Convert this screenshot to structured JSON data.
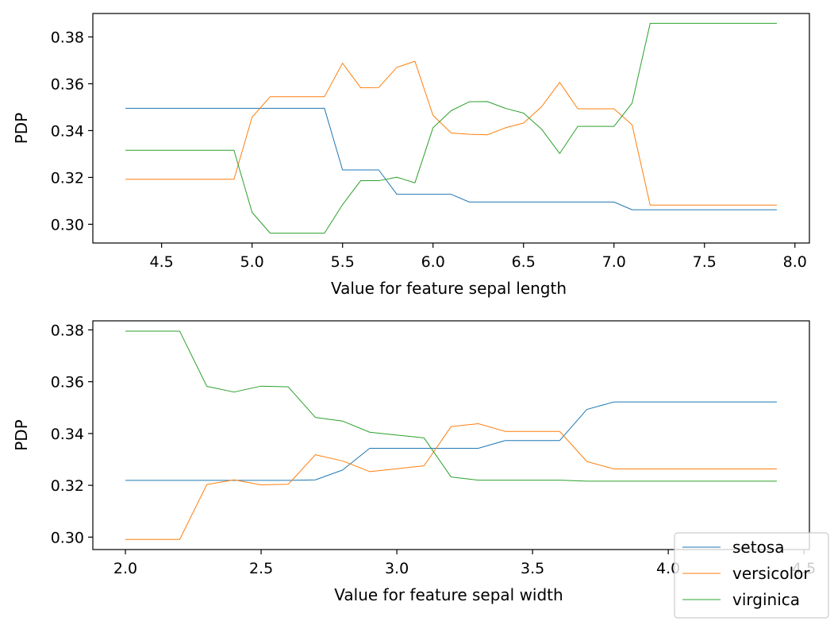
{
  "colors": {
    "setosa": "#1f77b4",
    "versicolor": "#ff7f0e",
    "virginica": "#2ca02c"
  },
  "legend": {
    "placement": "bottom-right",
    "entries": [
      "setosa",
      "versicolor",
      "virginica"
    ]
  },
  "chart_data": [
    {
      "type": "line",
      "xlabel": "Value for feature sepal length",
      "ylabel": "PDP",
      "xlim": [
        4.12,
        8.08
      ],
      "ylim": [
        0.292,
        0.39
      ],
      "xticks": [
        4.5,
        5.0,
        5.5,
        6.0,
        6.5,
        7.0,
        7.5,
        8.0
      ],
      "xtick_labels": [
        "4.5",
        "5.0",
        "5.5",
        "6.0",
        "6.5",
        "7.0",
        "7.5",
        "8.0"
      ],
      "yticks": [
        0.3,
        0.32,
        0.34,
        0.36,
        0.38
      ],
      "ytick_labels": [
        "0.30",
        "0.32",
        "0.34",
        "0.36",
        "0.38"
      ],
      "x": [
        4.3,
        4.4,
        4.5,
        4.6,
        4.7,
        4.8,
        4.9,
        5.0,
        5.1,
        5.2,
        5.3,
        5.4,
        5.5,
        5.6,
        5.7,
        5.8,
        5.9,
        6.0,
        6.1,
        6.2,
        6.3,
        6.4,
        6.5,
        6.6,
        6.7,
        6.8,
        6.9,
        7.0,
        7.1,
        7.2,
        7.3,
        7.4,
        7.5,
        7.6,
        7.7,
        7.8,
        7.9
      ],
      "series": [
        {
          "name": "setosa",
          "values": [
            0.3495,
            0.3495,
            0.3495,
            0.3495,
            0.3495,
            0.3495,
            0.3495,
            0.3495,
            0.3495,
            0.3495,
            0.3495,
            0.3495,
            0.3232,
            0.3232,
            0.3232,
            0.3128,
            0.3128,
            0.3128,
            0.3128,
            0.3095,
            0.3095,
            0.3095,
            0.3095,
            0.3095,
            0.3095,
            0.3095,
            0.3095,
            0.3095,
            0.3062,
            0.3062,
            0.3062,
            0.3062,
            0.3062,
            0.3062,
            0.3062,
            0.3062,
            0.3062
          ]
        },
        {
          "name": "versicolor",
          "values": [
            0.3192,
            0.3192,
            0.3192,
            0.3192,
            0.3192,
            0.3192,
            0.3192,
            0.3457,
            0.3545,
            0.3545,
            0.3545,
            0.3545,
            0.3688,
            0.3583,
            0.3584,
            0.367,
            0.3696,
            0.3465,
            0.339,
            0.3384,
            0.3382,
            0.3412,
            0.3432,
            0.3502,
            0.3606,
            0.3493,
            0.3493,
            0.3493,
            0.3425,
            0.3082,
            0.3082,
            0.3082,
            0.3082,
            0.3082,
            0.3082,
            0.3082,
            0.3082
          ]
        },
        {
          "name": "virginica",
          "values": [
            0.3316,
            0.3316,
            0.3316,
            0.3316,
            0.3316,
            0.3316,
            0.3316,
            0.3051,
            0.2962,
            0.2962,
            0.2962,
            0.2962,
            0.3084,
            0.3186,
            0.3186,
            0.3201,
            0.3177,
            0.3412,
            0.3485,
            0.3523,
            0.3524,
            0.3495,
            0.3475,
            0.3406,
            0.3302,
            0.3418,
            0.3418,
            0.3418,
            0.3517,
            0.3858,
            0.3858,
            0.3858,
            0.3858,
            0.3858,
            0.3858,
            0.3858,
            0.3858
          ]
        }
      ]
    },
    {
      "type": "line",
      "xlabel": "Value for feature sepal width",
      "ylabel": "PDP",
      "xlim": [
        1.88,
        4.52
      ],
      "ylim": [
        0.2952,
        0.3835
      ],
      "xticks": [
        2.0,
        2.5,
        3.0,
        3.5,
        4.0,
        4.5
      ],
      "xtick_labels": [
        "2.0",
        "2.5",
        "3.0",
        "3.5",
        "4.0",
        "4.5"
      ],
      "yticks": [
        0.3,
        0.32,
        0.34,
        0.36,
        0.38
      ],
      "ytick_labels": [
        "0.30",
        "0.32",
        "0.34",
        "0.36",
        "0.38"
      ],
      "x": [
        2.0,
        2.2,
        2.3,
        2.4,
        2.5,
        2.6,
        2.7,
        2.8,
        2.9,
        3.0,
        3.1,
        3.2,
        3.3,
        3.4,
        3.5,
        3.6,
        3.7,
        3.8,
        3.9,
        4.0,
        4.1,
        4.2,
        4.4
      ],
      "series": [
        {
          "name": "setosa",
          "values": [
            0.3219,
            0.3219,
            0.3219,
            0.3219,
            0.3219,
            0.3219,
            0.3221,
            0.3259,
            0.3343,
            0.3343,
            0.3343,
            0.3343,
            0.3343,
            0.3373,
            0.3373,
            0.3373,
            0.3493,
            0.3522,
            0.3522,
            0.3522,
            0.3522,
            0.3522,
            0.3522
          ]
        },
        {
          "name": "versicolor",
          "values": [
            0.2991,
            0.2991,
            0.3203,
            0.3221,
            0.3202,
            0.3204,
            0.3318,
            0.3294,
            0.3253,
            0.3264,
            0.3275,
            0.3427,
            0.3438,
            0.3408,
            0.3408,
            0.3408,
            0.3292,
            0.3263,
            0.3263,
            0.3263,
            0.3263,
            0.3263,
            0.3263
          ]
        },
        {
          "name": "virginica",
          "values": [
            0.3795,
            0.3795,
            0.3582,
            0.356,
            0.3583,
            0.358,
            0.3462,
            0.3448,
            0.3405,
            0.3394,
            0.3383,
            0.3232,
            0.322,
            0.322,
            0.322,
            0.322,
            0.3216,
            0.3216,
            0.3216,
            0.3216,
            0.3216,
            0.3216,
            0.3216
          ]
        }
      ]
    }
  ]
}
